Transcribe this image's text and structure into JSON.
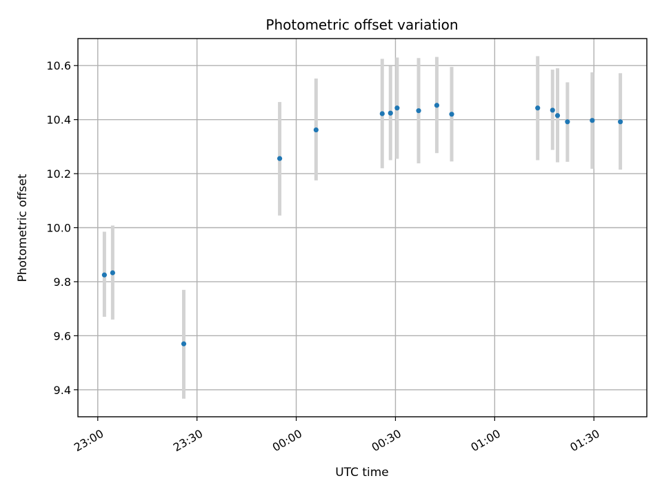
{
  "chart_data": {
    "type": "scatter",
    "title": "Photometric offset variation",
    "xlabel": "UTC time",
    "ylabel": "Photometric offset",
    "x_ticks": [
      "23:00",
      "23:30",
      "00:00",
      "00:30",
      "01:00",
      "01:30"
    ],
    "y_ticks": [
      "9.4",
      "9.6",
      "9.8",
      "10.0",
      "10.2",
      "10.4",
      "10.6"
    ],
    "xlim": [
      "22:54",
      "01:46"
    ],
    "ylim": [
      9.3,
      10.7
    ],
    "grid": true,
    "point_color": "#1f77b4",
    "errorbar_color": "#d3d3d3",
    "points": [
      {
        "x": "23:02",
        "y": 9.825,
        "ylow": 9.67,
        "yhigh": 9.985
      },
      {
        "x": "23:04:30",
        "y": 9.833,
        "ylow": 9.66,
        "yhigh": 10.008
      },
      {
        "x": "23:26",
        "y": 9.57,
        "ylow": 9.367,
        "yhigh": 9.77
      },
      {
        "x": "23:55",
        "y": 10.256,
        "ylow": 10.045,
        "yhigh": 10.465
      },
      {
        "x": "00:06",
        "y": 10.362,
        "ylow": 10.175,
        "yhigh": 10.552
      },
      {
        "x": "00:26",
        "y": 10.422,
        "ylow": 10.22,
        "yhigh": 10.625
      },
      {
        "x": "00:28:30",
        "y": 10.424,
        "ylow": 10.25,
        "yhigh": 10.598
      },
      {
        "x": "00:30:30",
        "y": 10.443,
        "ylow": 10.255,
        "yhigh": 10.63
      },
      {
        "x": "00:37",
        "y": 10.433,
        "ylow": 10.238,
        "yhigh": 10.628
      },
      {
        "x": "00:42:30",
        "y": 10.453,
        "ylow": 10.276,
        "yhigh": 10.632
      },
      {
        "x": "00:47",
        "y": 10.42,
        "ylow": 10.245,
        "yhigh": 10.595
      },
      {
        "x": "01:13",
        "y": 10.443,
        "ylow": 10.25,
        "yhigh": 10.635
      },
      {
        "x": "01:17:30",
        "y": 10.435,
        "ylow": 10.288,
        "yhigh": 10.585
      },
      {
        "x": "01:19",
        "y": 10.415,
        "ylow": 10.242,
        "yhigh": 10.59
      },
      {
        "x": "01:22",
        "y": 10.392,
        "ylow": 10.244,
        "yhigh": 10.538
      },
      {
        "x": "01:29:30",
        "y": 10.397,
        "ylow": 10.218,
        "yhigh": 10.575
      },
      {
        "x": "01:38",
        "y": 10.392,
        "ylow": 10.215,
        "yhigh": 10.572
      }
    ]
  }
}
